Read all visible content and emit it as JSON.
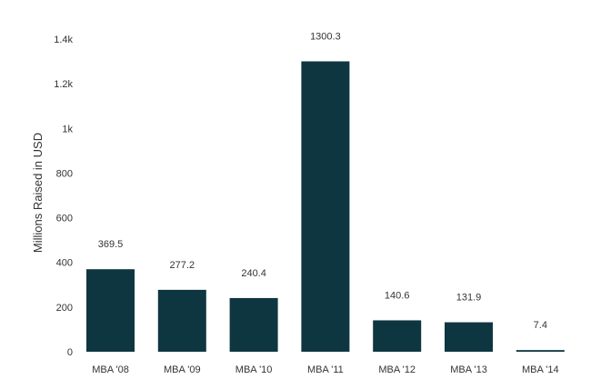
{
  "chart_data": {
    "type": "bar",
    "title": "",
    "xlabel": "",
    "ylabel": "Millions Raised in USD",
    "categories": [
      "MBA '08",
      "MBA '09",
      "MBA '10",
      "MBA '11",
      "MBA '12",
      "MBA '13",
      "MBA '14"
    ],
    "values": [
      369.5,
      277.2,
      240.4,
      1300.3,
      140.6,
      131.9,
      7.4
    ],
    "data_labels": [
      "369.5",
      "277.2",
      "240.4",
      "1300.3",
      "140.6",
      "131.9",
      "7.4"
    ],
    "yticks": [
      0,
      200,
      400,
      600,
      800,
      1000,
      1200,
      1400
    ],
    "ytick_labels": [
      "0",
      "200",
      "400",
      "600",
      "800",
      "1k",
      "1.2k",
      "1.4k"
    ],
    "ylim": [
      0,
      1400
    ],
    "grid": false,
    "legend": "none",
    "bar_color": "#0e3640"
  }
}
